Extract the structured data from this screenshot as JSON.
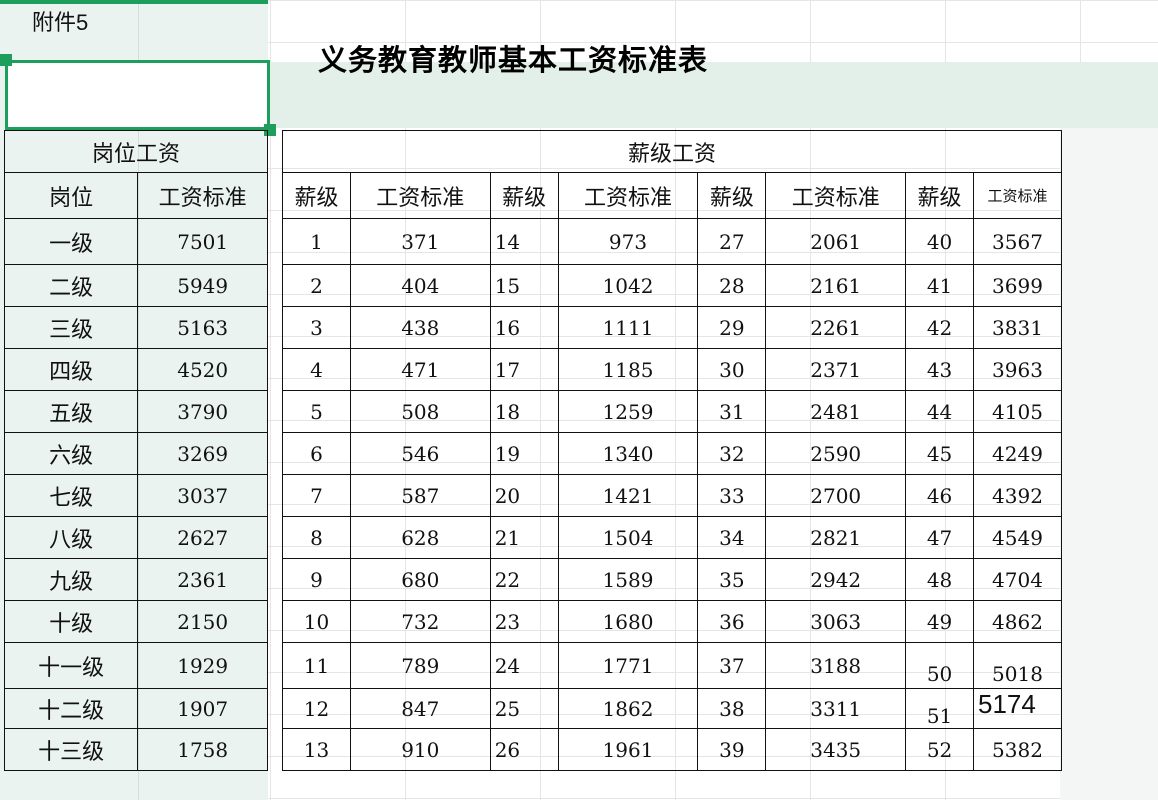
{
  "sheet": {
    "attachment_label": "附件5",
    "title": "义务教育教师基本工资标准表"
  },
  "position_table": {
    "group_header": "岗位工资",
    "col_position": "岗位",
    "col_standard": "工资标准",
    "rows": [
      {
        "position": "一级",
        "standard": "7501"
      },
      {
        "position": "二级",
        "standard": "5949"
      },
      {
        "position": "三级",
        "standard": "5163"
      },
      {
        "position": "四级",
        "standard": "4520"
      },
      {
        "position": "五级",
        "standard": "3790"
      },
      {
        "position": "六级",
        "standard": "3269"
      },
      {
        "position": "七级",
        "standard": "3037"
      },
      {
        "position": "八级",
        "standard": "2627"
      },
      {
        "position": "九级",
        "standard": "2361"
      },
      {
        "position": "十级",
        "standard": "2150"
      },
      {
        "position": "十一级",
        "standard": "1929"
      },
      {
        "position": "十二级",
        "standard": "1907"
      },
      {
        "position": "十三级",
        "standard": "1758"
      }
    ]
  },
  "salary_table": {
    "group_header": "薪级工资",
    "col_level": "薪级",
    "col_standard": "工资标准",
    "rows": [
      [
        "1",
        "371",
        "14",
        "973",
        "27",
        "2061",
        "40",
        "3567"
      ],
      [
        "2",
        "404",
        "15",
        "1042",
        "28",
        "2161",
        "41",
        "3699"
      ],
      [
        "3",
        "438",
        "16",
        "1111",
        "29",
        "2261",
        "42",
        "3831"
      ],
      [
        "4",
        "471",
        "17",
        "1185",
        "30",
        "2371",
        "43",
        "3963"
      ],
      [
        "5",
        "508",
        "18",
        "1259",
        "31",
        "2481",
        "44",
        "4105"
      ],
      [
        "6",
        "546",
        "19",
        "1340",
        "32",
        "2590",
        "45",
        "4249"
      ],
      [
        "7",
        "587",
        "20",
        "1421",
        "33",
        "2700",
        "46",
        "4392"
      ],
      [
        "8",
        "628",
        "21",
        "1504",
        "34",
        "2821",
        "47",
        "4549"
      ],
      [
        "9",
        "680",
        "22",
        "1589",
        "35",
        "2942",
        "48",
        "4704"
      ],
      [
        "10",
        "732",
        "23",
        "1680",
        "36",
        "3063",
        "49",
        "4862"
      ],
      [
        "11",
        "789",
        "24",
        "1771",
        "37",
        "3188",
        "50",
        "5018"
      ],
      [
        "12",
        "847",
        "25",
        "1862",
        "38",
        "3311",
        "51",
        "5174"
      ],
      [
        "13",
        "910",
        "26",
        "1961",
        "39",
        "3435",
        "52",
        "5382"
      ]
    ]
  }
}
